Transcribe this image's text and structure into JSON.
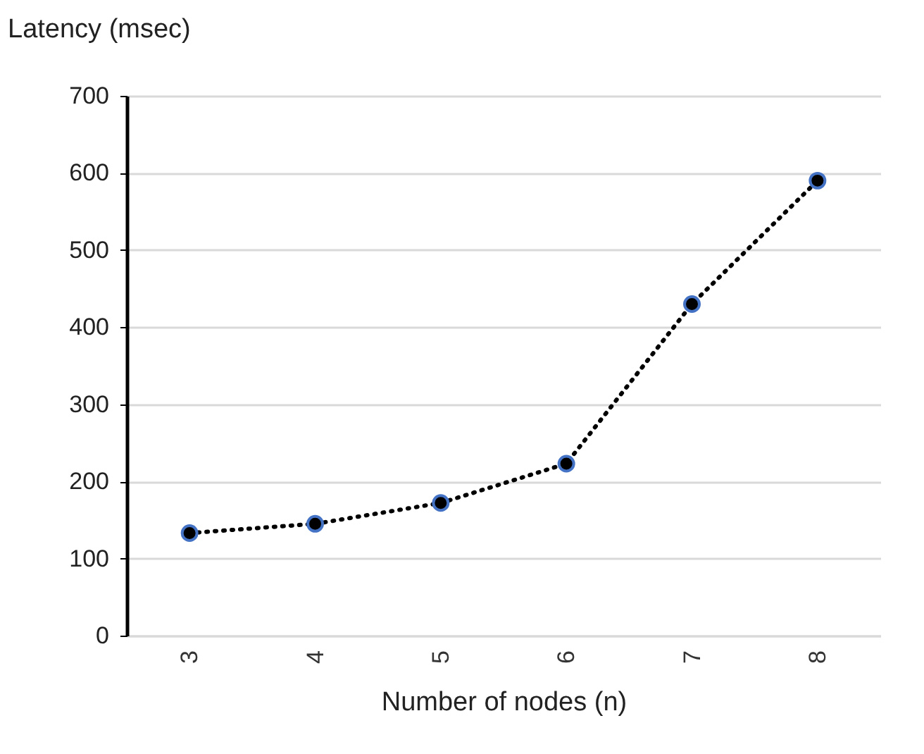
{
  "chart_data": {
    "type": "line",
    "xlabel": "Number of nodes (n)",
    "ylabel": "Latency (msec)",
    "categories": [
      "3",
      "4",
      "5",
      "6",
      "7",
      "8"
    ],
    "series": [
      {
        "color": "#000000",
        "values": [
          133,
          145,
          172,
          223,
          430,
          590
        ]
      }
    ],
    "ylim": [
      0,
      700
    ],
    "yticks": [
      0,
      100,
      200,
      300,
      400,
      500,
      600,
      700
    ],
    "grid": "y",
    "marker": "circle",
    "line_style": "dotted",
    "legend": false
  }
}
